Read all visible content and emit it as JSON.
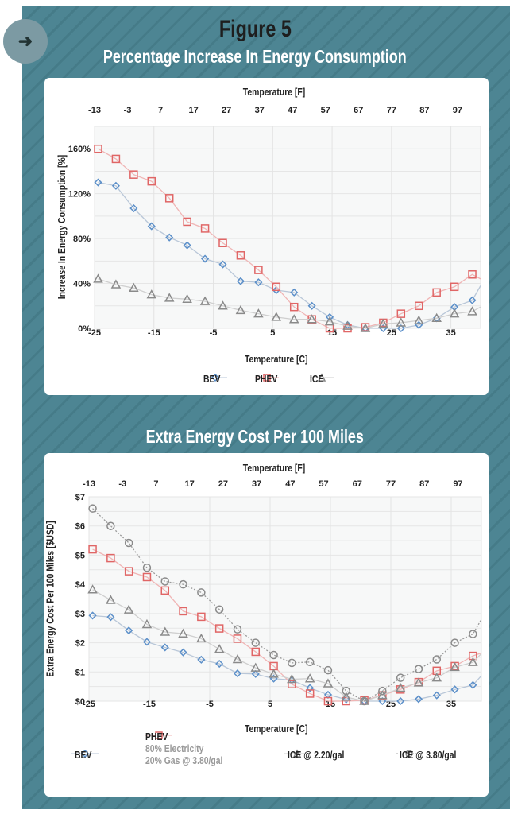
{
  "figure_label": "Figure 5",
  "colors": {
    "background": "#4d8593",
    "BEV": "#5b8fc9",
    "PHEV": "#e06666",
    "ICE": "#8a8a8a",
    "ICE_380": "#8a8a8a"
  },
  "chart_data": [
    {
      "type": "line",
      "title": "Percentage Increase In Energy Consumption",
      "xlabel": "Temperature [C]",
      "x2label": "Temperature [F]",
      "ylabel": "Increase In Energy Consumption [%]",
      "xlim": [
        -25,
        40
      ],
      "ylim": [
        0,
        180
      ],
      "xticks": [
        -25,
        -15,
        -5,
        5,
        15,
        25,
        35
      ],
      "x2ticks": [
        -13,
        -3,
        7,
        17,
        27,
        37,
        47,
        57,
        67,
        77,
        87,
        97
      ],
      "yticks": [
        0,
        40,
        80,
        120,
        160
      ],
      "ytick_labels": [
        "0%",
        "40%",
        "80%",
        "120%",
        "160%"
      ],
      "grid": true,
      "legend": "bottom",
      "x": [
        -24.4,
        -21.4,
        -18.4,
        -15.4,
        -12.4,
        -9.4,
        -6.4,
        -3.4,
        -0.4,
        2.6,
        5.6,
        8.6,
        11.6,
        14.6,
        17.6,
        20.6,
        23.6,
        26.6,
        29.6,
        32.6,
        35.6,
        38.6,
        40
      ],
      "series": [
        {
          "name": "BEV",
          "marker": "diamond",
          "values": [
            130,
            127,
            107,
            91,
            81,
            74,
            62,
            57,
            42,
            41,
            34,
            32,
            20,
            10,
            3,
            0,
            0,
            0,
            3,
            9,
            19,
            25,
            38
          ]
        },
        {
          "name": "PHEV",
          "marker": "square",
          "values": [
            160,
            151,
            137,
            131,
            116,
            95,
            89,
            76,
            65,
            52,
            37,
            19,
            8,
            0,
            0,
            1,
            5,
            13,
            20,
            32,
            37,
            48,
            44
          ]
        },
        {
          "name": "ICE",
          "marker": "triangle",
          "values": [
            44,
            39,
            36,
            30,
            27,
            26,
            24,
            20,
            16,
            13,
            10,
            8,
            8,
            6,
            2,
            0,
            4,
            5,
            7,
            9,
            13,
            15,
            19
          ]
        }
      ]
    },
    {
      "type": "line",
      "title": "Extra Energy Cost Per 100 Miles",
      "xlabel": "Temperature [C]",
      "x2label": "Temperature [F]",
      "ylabel": "Extra Energy Cost Per 100 Miles [$USD]",
      "xlim": [
        -25,
        40
      ],
      "ylim": [
        0,
        7
      ],
      "xticks": [
        -25,
        -15,
        -5,
        5,
        15,
        25,
        35
      ],
      "x2ticks": [
        -13,
        -3,
        7,
        17,
        27,
        37,
        47,
        57,
        67,
        77,
        87,
        97
      ],
      "yticks": [
        0,
        1,
        2,
        3,
        4,
        5,
        6,
        7
      ],
      "ytick_labels": [
        "$0",
        "$1",
        "$2",
        "$3",
        "$4",
        "$5",
        "$6",
        "$7"
      ],
      "grid": true,
      "legend": "bottom",
      "x": [
        -24.4,
        -21.4,
        -18.4,
        -15.4,
        -12.4,
        -9.4,
        -6.4,
        -3.4,
        -0.4,
        2.6,
        5.6,
        8.6,
        11.6,
        14.6,
        17.6,
        20.6,
        23.6,
        26.6,
        29.6,
        32.6,
        35.6,
        38.6,
        40
      ],
      "series": [
        {
          "name": "BEV",
          "marker": "diamond",
          "values": [
            2.93,
            2.88,
            2.42,
            2.03,
            1.84,
            1.67,
            1.42,
            1.28,
            0.95,
            0.93,
            0.77,
            0.72,
            0.45,
            0.22,
            0.06,
            0,
            0,
            0,
            0.07,
            0.2,
            0.4,
            0.55,
            0.87
          ]
        },
        {
          "name": "PHEV",
          "label_lines": [
            "PHEV",
            "80% Electricity",
            "20% Gas @ 3.80/gal"
          ],
          "marker": "square",
          "values": [
            5.2,
            4.9,
            4.45,
            4.25,
            3.79,
            3.08,
            2.89,
            2.49,
            2.14,
            1.69,
            1.2,
            0.58,
            0.26,
            0,
            0,
            0.03,
            0.2,
            0.4,
            0.65,
            1.04,
            1.2,
            1.55,
            1.65
          ]
        },
        {
          "name": "ICE @ 2.20/gal",
          "marker": "triangle",
          "values": [
            3.82,
            3.46,
            3.13,
            2.63,
            2.37,
            2.31,
            2.14,
            1.78,
            1.43,
            1.14,
            0.93,
            0.75,
            0.77,
            0.6,
            0.14,
            0,
            0.2,
            0.45,
            0.63,
            0.8,
            1.16,
            1.33,
            1.63
          ]
        },
        {
          "name": "ICE @ 3.80/gal",
          "marker": "circle",
          "values": [
            6.6,
            6.0,
            5.42,
            4.57,
            4.1,
            4.0,
            3.72,
            3.14,
            2.46,
            2.0,
            1.58,
            1.31,
            1.34,
            1.06,
            0.35,
            0,
            0.35,
            0.8,
            1.1,
            1.43,
            2.0,
            2.3,
            2.8
          ]
        }
      ]
    }
  ]
}
